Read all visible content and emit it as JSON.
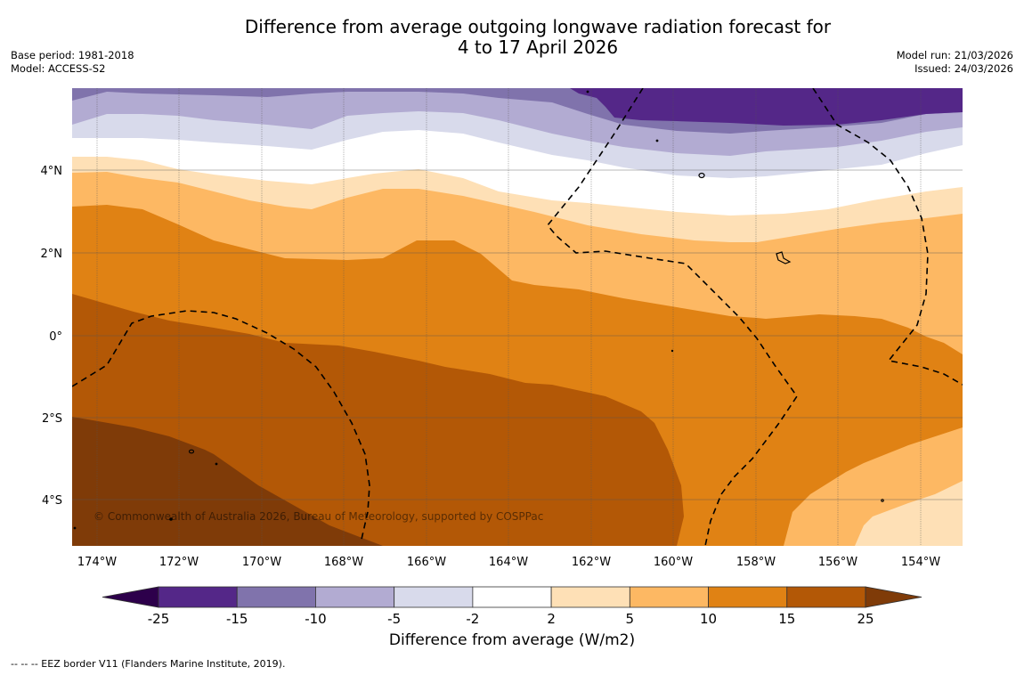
{
  "header": {
    "title_line1": "Difference from average outgoing longwave radiation forecast for",
    "title_line2": "4 to 17 April 2026",
    "base_period": "Base period: 1981-2018",
    "model": "Model: ACCESS-S2",
    "model_run": "Model run: 21/03/2026",
    "issued": "Issued: 24/03/2026"
  },
  "map": {
    "copyright": "© Commonwealth of Australia 2026, Bureau of Meteorology, supported by COSPPac",
    "lon_ticks": [
      "174°W",
      "172°W",
      "170°W",
      "168°W",
      "166°W",
      "164°W",
      "162°W",
      "160°W",
      "158°W",
      "156°W",
      "154°W"
    ],
    "lat_ticks": [
      "4°N",
      "2°N",
      "0°",
      "2°S",
      "4°S"
    ],
    "extent": {
      "lon_min": "174.6°W",
      "lon_max": "153°W",
      "lat_min": "5.1°S",
      "lat_max": "6°N"
    }
  },
  "colorbar": {
    "title": "Difference from average (W/m2)",
    "ticks": [
      "-25",
      "-15",
      "-10",
      "-5",
      "-2",
      "2",
      "5",
      "10",
      "15",
      "25"
    ],
    "bins": [
      {
        "range": "< -25",
        "color": "#2d004b"
      },
      {
        "range": "-25 to -15",
        "color": "#542788"
      },
      {
        "range": "-15 to -10",
        "color": "#8073ac"
      },
      {
        "range": "-10 to -5",
        "color": "#b2abd2"
      },
      {
        "range": "-5 to -2",
        "color": "#d8daeb"
      },
      {
        "range": "-2 to 2",
        "color": "#ffffff"
      },
      {
        "range": "2 to 5",
        "color": "#fee0b6"
      },
      {
        "range": "5 to 10",
        "color": "#fdb863"
      },
      {
        "range": "10 to 15",
        "color": "#e08214"
      },
      {
        "range": "15 to 25",
        "color": "#b35806"
      },
      {
        "range": "> 25",
        "color": "#7f3b08"
      }
    ]
  },
  "footnote": "--  --  -- EEZ border V11 (Flanders Marine Institute, 2019)."
}
